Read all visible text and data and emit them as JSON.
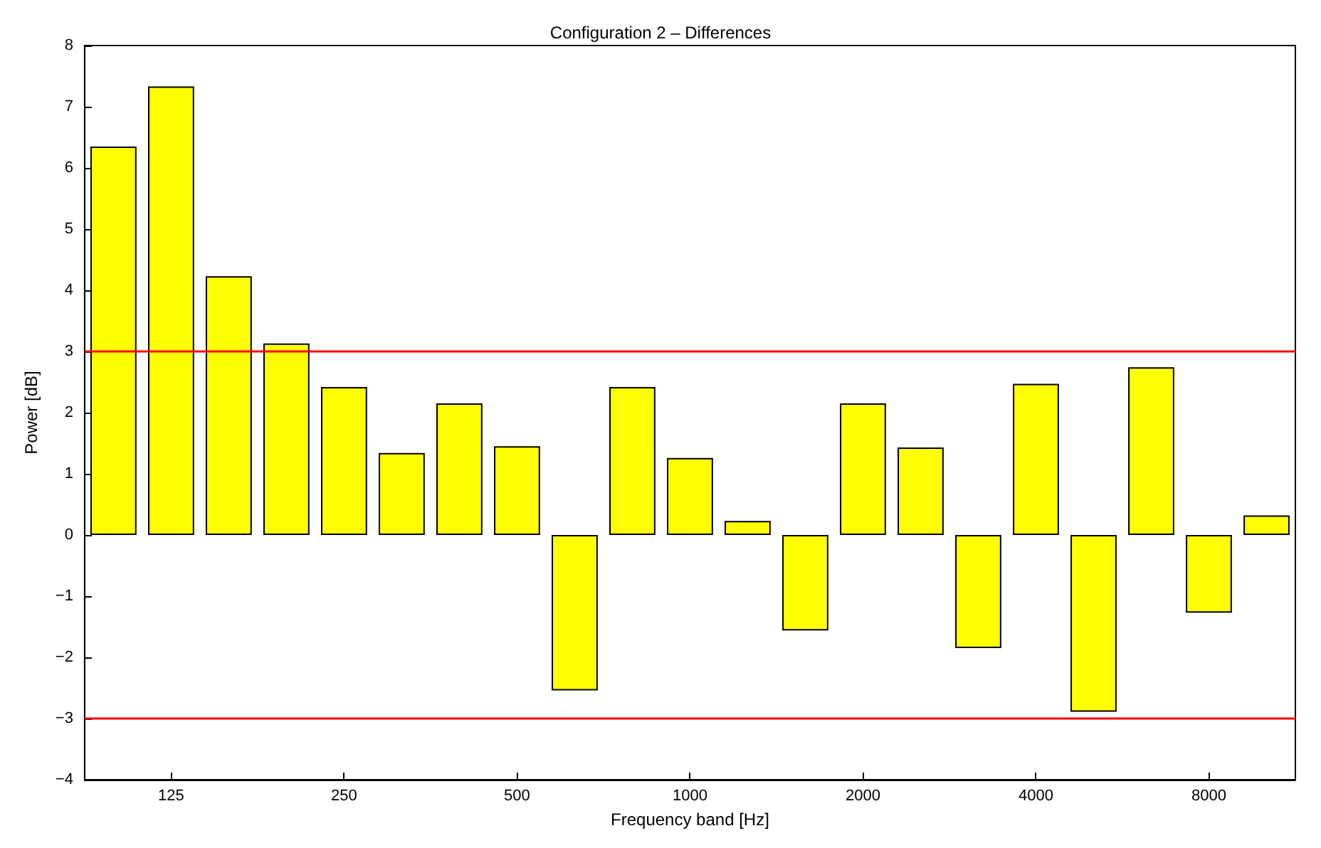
{
  "chart_data": {
    "type": "bar",
    "title": "Configuration 2 – Differences",
    "xlabel": "Frequency band [Hz]",
    "ylabel": "Power [dB]",
    "categories": [
      null,
      "125",
      null,
      null,
      "250",
      null,
      null,
      "500",
      null,
      null,
      "1000",
      null,
      null,
      "2000",
      null,
      null,
      "4000",
      null,
      null,
      "8000",
      null
    ],
    "values": [
      6.35,
      7.33,
      4.23,
      3.13,
      2.42,
      1.34,
      2.15,
      1.45,
      -2.54,
      2.42,
      1.26,
      0.23,
      -1.56,
      2.15,
      1.43,
      -1.85,
      2.47,
      -2.89,
      2.74,
      -1.27,
      0.32
    ],
    "color": "#ffff00",
    "ylim": [
      -4,
      8
    ],
    "yticks": [
      -4,
      -3,
      -2,
      -1,
      0,
      1,
      2,
      3,
      4,
      5,
      6,
      7,
      8
    ],
    "grid": false,
    "ref_lines": [
      {
        "axis": "y",
        "value": 3,
        "color": "#ff0000"
      },
      {
        "axis": "y",
        "value": -3,
        "color": "#ff0000"
      }
    ]
  }
}
